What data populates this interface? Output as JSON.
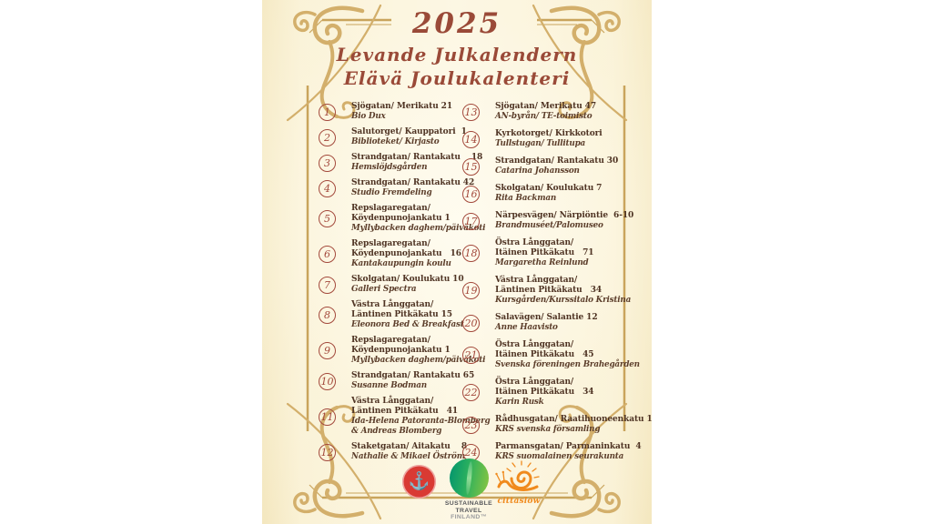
{
  "header": {
    "year": "2025",
    "title_swedish": "Levande Julkalendern",
    "title_finnish": "Elävä Joulukalenteri"
  },
  "calendar": {
    "left": [
      {
        "num": "1",
        "address": [
          "Sjögatan/ Merikatu 21"
        ],
        "name": [
          "Bio Dux"
        ]
      },
      {
        "num": "2",
        "address": [
          "Salutorget/ Kauppatori  1"
        ],
        "name": [
          "Biblioteket/ Kirjasto"
        ]
      },
      {
        "num": "3",
        "address": [
          "Strandgatan/ Rantakatu    18"
        ],
        "name": [
          "Hemslöjdsgården"
        ]
      },
      {
        "num": "4",
        "address": [
          "Strandgatan/ Rantakatu 42"
        ],
        "name": [
          "Studio Fremdeling"
        ]
      },
      {
        "num": "5",
        "address": [
          "Repslagaregatan/",
          "Köydenpunojankatu 1"
        ],
        "name": [
          "Myllybacken daghem/päiväkoti"
        ]
      },
      {
        "num": "6",
        "address": [
          "Repslagaregatan/",
          "Köydenpunojankatu   16"
        ],
        "name": [
          "Kantakaupungin koulu"
        ]
      },
      {
        "num": "7",
        "address": [
          "Skolgatan/ Koulukatu 10"
        ],
        "name": [
          "Galleri Spectra"
        ]
      },
      {
        "num": "8",
        "address": [
          "Västra Långgatan/",
          "Läntinen Pitkäkatu 15"
        ],
        "name": [
          "Eleonora Bed & Breakfast"
        ]
      },
      {
        "num": "9",
        "address": [
          "Repslagaregatan/",
          "Köydenpunojankatu 1"
        ],
        "name": [
          "Myllybacken daghem/päiväkoti"
        ]
      },
      {
        "num": "10",
        "address": [
          "Strandgatan/ Rantakatu 65"
        ],
        "name": [
          "Susanne Bodman"
        ]
      },
      {
        "num": "11",
        "address": [
          "Västra Långgatan/",
          "Läntinen Pitkäkatu   41"
        ],
        "name": [
          "Ida-Helena Patoranta-Blomberg",
          "& Andreas Blomberg"
        ]
      },
      {
        "num": "12",
        "address": [
          "Staketgatan/ Aitakatu    8"
        ],
        "name": [
          "Nathalie & Mikael Öström"
        ]
      }
    ],
    "right": [
      {
        "num": "13",
        "address": [
          "Sjögatan/ Merikatu 47"
        ],
        "name": [
          "AN-byrån/ TE-toimisto"
        ]
      },
      {
        "num": "14",
        "address": [
          "Kyrkotorget/ Kirkkotori"
        ],
        "name": [
          "Tullstugan/ Tullitupa"
        ]
      },
      {
        "num": "15",
        "address": [
          "Strandgatan/ Rantakatu 30"
        ],
        "name": [
          "Catarina Johansson"
        ]
      },
      {
        "num": "16",
        "address": [
          "Skolgatan/ Koulukatu 7"
        ],
        "name": [
          "Rita Backman"
        ]
      },
      {
        "num": "17",
        "address": [
          "Närpesvägen/ Närpiöntie  6-10"
        ],
        "name": [
          "Brandmuséet/Palomuseo"
        ]
      },
      {
        "num": "18",
        "address": [
          "Östra Långgatan/",
          "Itäinen Pitkäkatu   71"
        ],
        "name": [
          "Margaretha Reinlund"
        ]
      },
      {
        "num": "19",
        "address": [
          "Västra Långgatan/",
          "Läntinen Pitkäkatu   34"
        ],
        "name": [
          "Kursgården/Kurssitalo Kristina"
        ]
      },
      {
        "num": "20",
        "address": [
          "Salavägen/ Salantie 12"
        ],
        "name": [
          "Anne Haavisto"
        ]
      },
      {
        "num": "21",
        "address": [
          "Östra Långgatan/",
          "Itäinen Pitkäkatu   45"
        ],
        "name": [
          "Svenska föreningen Brahegården"
        ]
      },
      {
        "num": "22",
        "address": [
          "Östra Långgatan/",
          "Itäinen Pitkäkatu   34"
        ],
        "name": [
          "Karin Rusk"
        ]
      },
      {
        "num": "23",
        "address": [
          "Rådhusgatan/ Raatihuoneenkatu 1"
        ],
        "name": [
          "KRS svenska församling"
        ]
      },
      {
        "num": "24",
        "address": [
          "Parmansgatan/ Parmaninkatu  4"
        ],
        "name": [
          "KRS suomalainen seurakunta"
        ]
      }
    ]
  },
  "footer": {
    "seal_icon": "anchor",
    "seal_glyph": "⚓",
    "stf_lines": [
      "SUSTAINABLE",
      "TRAVEL",
      "FINLAND™"
    ],
    "cittaslow_icon": "snail",
    "cittaslow_label": "cittaslow"
  },
  "colors": {
    "heading": "#9a4a38",
    "number_circle": "#a3493c",
    "address_text": "#4f3424",
    "name_text": "#5c3e2b",
    "frame_gold": "#c9a45c",
    "flourish_gold": "#d3af6b",
    "page_cream": "#faf3dc",
    "seal_red": "#d93a33",
    "stf_green": "#2bb05e",
    "cittaslow_orange": "#f08a1d"
  }
}
